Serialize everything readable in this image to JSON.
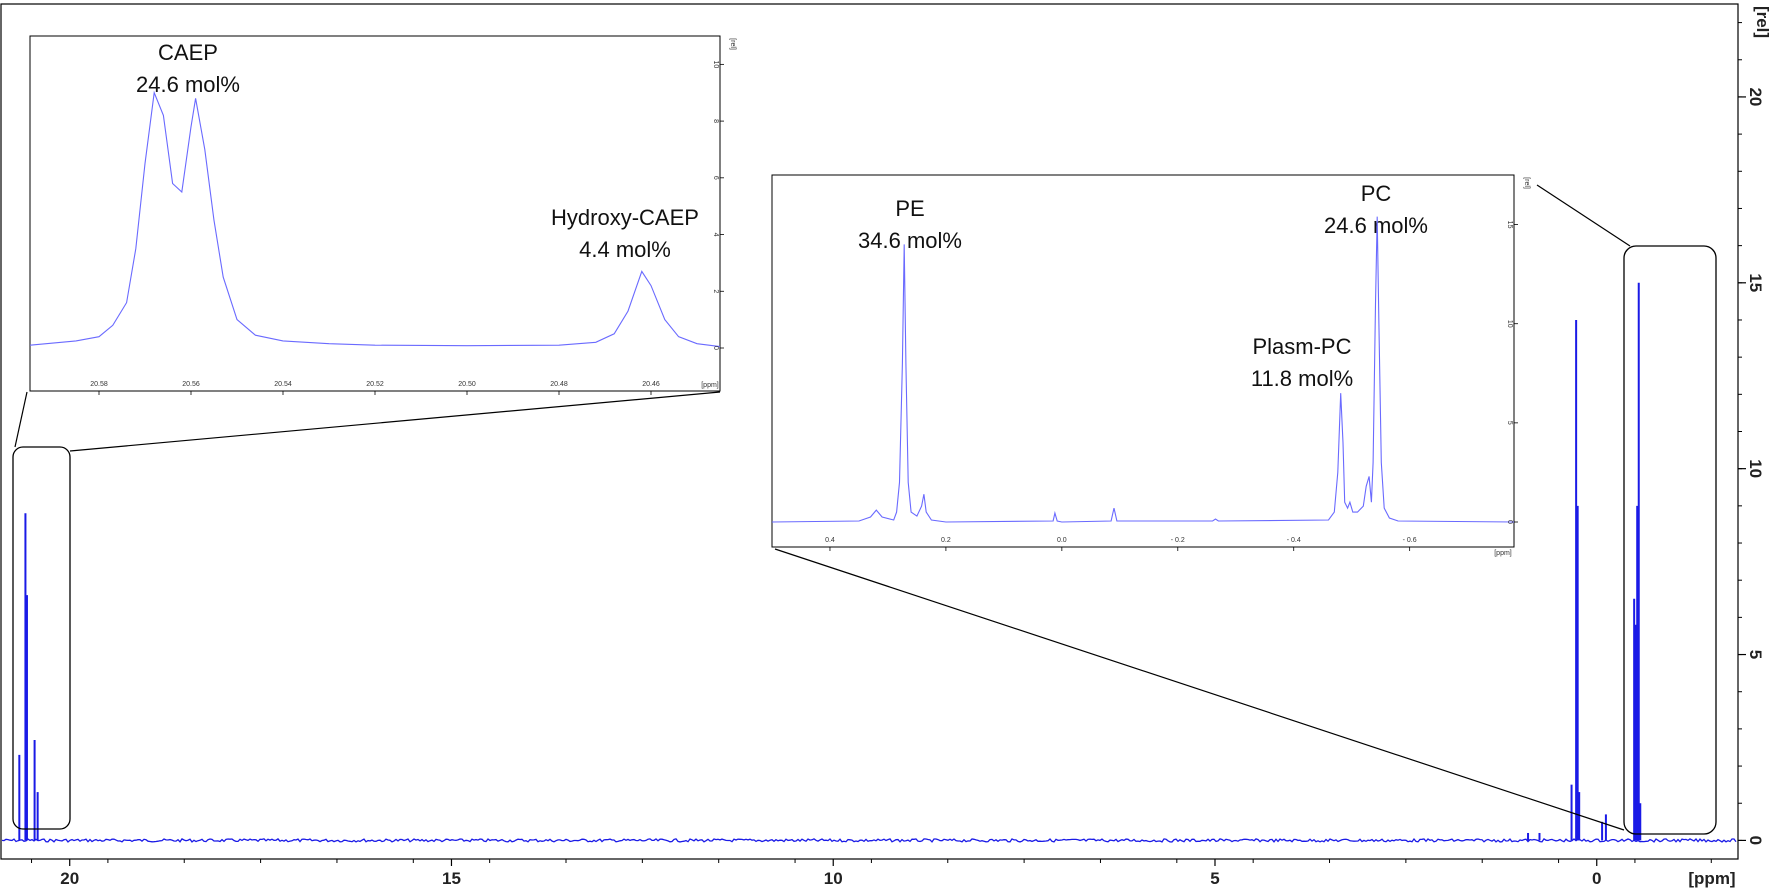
{
  "chart_data": [
    {
      "id": "main-spectrum",
      "type": "line",
      "title": "",
      "xlabel": "[ppm]",
      "ylabel": "[rel]",
      "xlim": [
        20.9,
        -1.85
      ],
      "ylim": [
        -0.5,
        22.5
      ],
      "x_ticks": [
        20,
        15,
        10,
        5,
        0
      ],
      "y_ticks": [
        0,
        5,
        10,
        15,
        20
      ],
      "series": [
        {
          "peaks": [
            {
              "x": 20.66,
              "y": 2.3
            },
            {
              "x": 20.58,
              "y": 8.8
            },
            {
              "x": 20.56,
              "y": 6.6
            },
            {
              "x": 20.46,
              "y": 2.7
            },
            {
              "x": 20.42,
              "y": 1.3
            },
            {
              "x": -0.12,
              "y": 0.7
            },
            {
              "x": -0.07,
              "y": 0.5
            },
            {
              "x": 0.27,
              "y": 14.0
            },
            {
              "x": 0.25,
              "y": 9.0
            },
            {
              "x": 0.23,
              "y": 1.3
            },
            {
              "x": 0.33,
              "y": 1.5
            },
            {
              "x": -0.49,
              "y": 6.5
            },
            {
              "x": -0.51,
              "y": 5.8
            },
            {
              "x": -0.53,
              "y": 9.0
            },
            {
              "x": -0.55,
              "y": 15.0
            },
            {
              "x": -0.57,
              "y": 1.0
            },
            {
              "x": 0.9,
              "y": 0.2
            },
            {
              "x": 0.75,
              "y": 0.2
            }
          ]
        }
      ],
      "grid": false
    },
    {
      "id": "inset-caep",
      "type": "line",
      "title": "",
      "xlabel": "[ppm]",
      "ylabel": "[rel]",
      "xlim": [
        20.595,
        20.445
      ],
      "ylim": [
        -0.2,
        11.0
      ],
      "x_ticks": [
        20.58,
        20.56,
        20.54,
        20.52,
        20.5,
        20.48,
        20.46
      ],
      "x_tick_labels": [
        "20.58",
        "20.56",
        "20.54",
        "20.52",
        "20.50",
        "20.48",
        "20.46"
      ],
      "y_ticks": [
        0,
        2,
        4,
        6,
        8,
        10
      ],
      "series": [
        {
          "points": [
            [
              20.595,
              0.1
            ],
            [
              20.585,
              0.25
            ],
            [
              20.58,
              0.4
            ],
            [
              20.577,
              0.8
            ],
            [
              20.574,
              1.6
            ],
            [
              20.572,
              3.5
            ],
            [
              20.57,
              6.5
            ],
            [
              20.568,
              9.0
            ],
            [
              20.566,
              8.2
            ],
            [
              20.564,
              5.8
            ],
            [
              20.562,
              5.5
            ],
            [
              20.56,
              7.8
            ],
            [
              20.559,
              8.8
            ],
            [
              20.557,
              7.0
            ],
            [
              20.555,
              4.5
            ],
            [
              20.553,
              2.5
            ],
            [
              20.55,
              1.0
            ],
            [
              20.546,
              0.45
            ],
            [
              20.54,
              0.25
            ],
            [
              20.53,
              0.15
            ],
            [
              20.52,
              0.1
            ],
            [
              20.5,
              0.08
            ],
            [
              20.48,
              0.1
            ],
            [
              20.472,
              0.2
            ],
            [
              20.468,
              0.5
            ],
            [
              20.465,
              1.3
            ],
            [
              20.462,
              2.7
            ],
            [
              20.46,
              2.2
            ],
            [
              20.457,
              1.0
            ],
            [
              20.454,
              0.4
            ],
            [
              20.45,
              0.15
            ],
            [
              20.445,
              0.05
            ]
          ]
        }
      ],
      "annotations": [
        {
          "line1": "CAEP",
          "line2": "24.6 mol%"
        },
        {
          "line1": "Hydroxy-CAEP",
          "line2": "4.4 mol%"
        }
      ]
    },
    {
      "id": "inset-pe-pc",
      "type": "line",
      "title": "",
      "xlabel": "[ppm]",
      "ylabel": "[rel]",
      "xlim": [
        0.5,
        -0.78
      ],
      "ylim": [
        -0.3,
        17.5
      ],
      "x_ticks": [
        0.4,
        0.2,
        0.0,
        -0.2,
        -0.4,
        -0.6
      ],
      "x_tick_labels": [
        "0.4",
        "0.2",
        "0.0",
        "- 0.2",
        "- 0.4",
        "- 0.6"
      ],
      "y_ticks": [
        0,
        5,
        10,
        15
      ],
      "series": [
        {
          "points": [
            [
              0.5,
              0.0
            ],
            [
              0.35,
              0.05
            ],
            [
              0.33,
              0.25
            ],
            [
              0.32,
              0.6
            ],
            [
              0.31,
              0.25
            ],
            [
              0.29,
              0.1
            ],
            [
              0.285,
              0.5
            ],
            [
              0.28,
              2.0
            ],
            [
              0.275,
              8.0
            ],
            [
              0.272,
              14.0
            ],
            [
              0.269,
              8.0
            ],
            [
              0.265,
              2.0
            ],
            [
              0.26,
              0.5
            ],
            [
              0.25,
              0.3
            ],
            [
              0.242,
              0.8
            ],
            [
              0.238,
              1.4
            ],
            [
              0.234,
              0.5
            ],
            [
              0.225,
              0.1
            ],
            [
              0.2,
              0.0
            ],
            [
              0.015,
              0.05
            ],
            [
              0.012,
              0.45
            ],
            [
              0.008,
              0.05
            ],
            [
              0.0,
              0.0
            ],
            [
              -0.085,
              0.05
            ],
            [
              -0.09,
              0.7
            ],
            [
              -0.095,
              0.05
            ],
            [
              -0.26,
              0.05
            ],
            [
              -0.265,
              0.15
            ],
            [
              -0.27,
              0.05
            ],
            [
              -0.46,
              0.1
            ],
            [
              -0.47,
              0.5
            ],
            [
              -0.476,
              2.5
            ],
            [
              -0.481,
              6.5
            ],
            [
              -0.485,
              4.0
            ],
            [
              -0.488,
              1.0
            ],
            [
              -0.493,
              0.7
            ],
            [
              -0.497,
              1.0
            ],
            [
              -0.502,
              0.5
            ],
            [
              -0.51,
              0.5
            ],
            [
              -0.52,
              0.8
            ],
            [
              -0.525,
              1.8
            ],
            [
              -0.53,
              2.3
            ],
            [
              -0.534,
              1.0
            ],
            [
              -0.537,
              3.0
            ],
            [
              -0.541,
              11.0
            ],
            [
              -0.544,
              15.4
            ],
            [
              -0.547,
              10.0
            ],
            [
              -0.551,
              3.0
            ],
            [
              -0.556,
              0.7
            ],
            [
              -0.565,
              0.2
            ],
            [
              -0.58,
              0.05
            ],
            [
              -0.78,
              0.0
            ]
          ]
        }
      ],
      "annotations": [
        {
          "line1": "PE",
          "line2": "34.6 mol%"
        },
        {
          "line1": "PC",
          "line2": "24.6 mol%"
        },
        {
          "line1": "Plasm-PC",
          "line2": "11.8 mol%"
        }
      ]
    }
  ],
  "colors": {
    "spectrum": "#1a1ae6",
    "inset_spectrum": "#6a6aff",
    "frame": "#000000"
  }
}
